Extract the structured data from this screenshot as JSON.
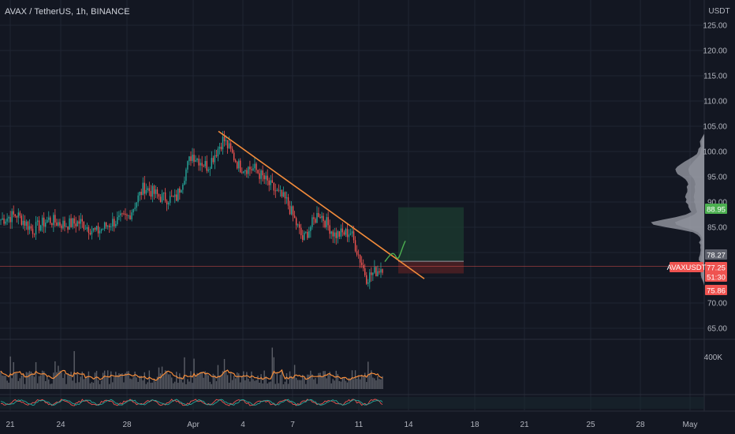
{
  "header": {
    "symbol_title": "AVAX / TetherUS, 1h, BINANCE",
    "currency_label": "USDT"
  },
  "colors": {
    "background": "#131722",
    "grid": "#1f2433",
    "up_candle": "#26a69a",
    "down_candle": "#ef5350",
    "trendline": "#f48c3b",
    "target_zone": "#1c3a2f",
    "stop_zone": "#4a1f24",
    "projection": "#4caf50",
    "volume_ma": "#f48c3b",
    "volume_bar": "#7a7d85",
    "volume_profile": "#d1d4dc"
  },
  "price_tags": [
    {
      "label": "88.95",
      "color": "#4caf50",
      "text_color": "#ffffff"
    },
    {
      "label": "78.27",
      "color": "#5d606b",
      "text_color": "#ffffff"
    },
    {
      "label": "77.25",
      "color": "#ef5350",
      "text_color": "#ffffff"
    },
    {
      "label": "51:30",
      "color": "#ef5350",
      "text_color": "#ffffff"
    },
    {
      "label": "75.86",
      "color": "#ef5350",
      "text_color": "#ffffff"
    }
  ],
  "symbol_tag": {
    "label": "AVAXUSDT",
    "color": "#ef5350"
  },
  "chart_data": {
    "type": "candlestick",
    "yaxis_ticks": [
      125.0,
      120.0,
      115.0,
      110.0,
      105.0,
      100.0,
      95.0,
      90.0,
      85.0,
      80.0,
      75.0,
      70.0,
      65.0
    ],
    "y_tick_labels": [
      "125.00",
      "120.00",
      "115.00",
      "110.00",
      "105.00",
      "100.00",
      "95.00",
      "90.00",
      "85.00",
      "80.00",
      "75.00",
      "70.00",
      "65.00"
    ],
    "ylim": [
      62.5,
      129.5
    ],
    "x_tick_labels": [
      "21",
      "24",
      "28",
      "Apr",
      "4",
      "7",
      "11",
      "14",
      "18",
      "21",
      "25",
      "28",
      "May"
    ],
    "volume_axis_label": "400K",
    "current_price": 77.25,
    "close_path": [
      {
        "x": "Mar 20",
        "y": 86.5
      },
      {
        "x": "Mar 21",
        "y": 87.5
      },
      {
        "x": "Mar 22",
        "y": 84.5
      },
      {
        "x": "Mar 23",
        "y": 86.5
      },
      {
        "x": "Mar 24",
        "y": 85.5
      },
      {
        "x": "Mar 25",
        "y": 86.0
      },
      {
        "x": "Mar 26",
        "y": 84.0
      },
      {
        "x": "Mar 27",
        "y": 86.0
      },
      {
        "x": "Mar 28",
        "y": 87.0
      },
      {
        "x": "Mar 29",
        "y": 93.0
      },
      {
        "x": "Mar 30",
        "y": 91.0
      },
      {
        "x": "Mar 31",
        "y": 90.5
      },
      {
        "x": "Apr 1",
        "y": 99.5
      },
      {
        "x": "Apr 2",
        "y": 97.0
      },
      {
        "x": "Apr 3",
        "y": 102.5
      },
      {
        "x": "Apr 4",
        "y": 97.0
      },
      {
        "x": "Apr 5",
        "y": 96.5
      },
      {
        "x": "Apr 6",
        "y": 93.0
      },
      {
        "x": "Apr 7",
        "y": 90.0
      },
      {
        "x": "Apr 8",
        "y": 82.5
      },
      {
        "x": "Apr 9",
        "y": 88.0
      },
      {
        "x": "Apr 10",
        "y": 83.5
      },
      {
        "x": "Apr 11",
        "y": 84.0
      },
      {
        "x": "Apr 12",
        "y": 75.0
      },
      {
        "x": "Apr 12 b",
        "y": 77.2
      }
    ],
    "trendline": {
      "start": {
        "x": "Apr 3",
        "y": 104.0
      },
      "end": {
        "x": "Apr 14",
        "y": 74.8
      }
    },
    "position": {
      "entry": 78.27,
      "target": 88.95,
      "stop": 75.86
    },
    "projection": [
      {
        "x": "Apr 12",
        "y": 78.0
      },
      {
        "x": "Apr 13",
        "y": 80.0
      },
      {
        "x": "Apr 14",
        "y": 82.0
      }
    ]
  }
}
